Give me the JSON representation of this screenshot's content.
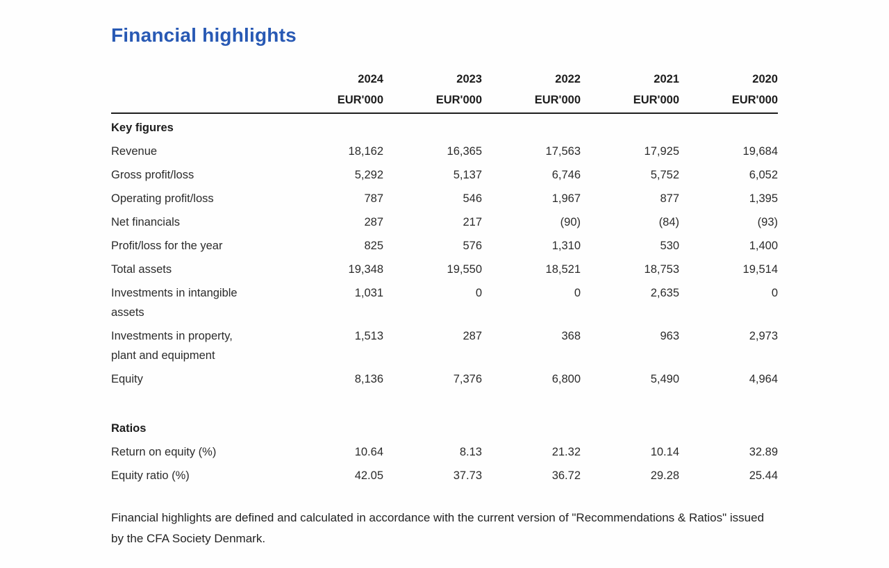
{
  "page": {
    "title": "Financial highlights",
    "title_color": "#2859b4",
    "footnote": "Financial highlights are defined and calculated in accordance with the current version of \"Recommendations & Ratios\" issued by the CFA Society Denmark."
  },
  "table": {
    "year_headers": [
      "2024",
      "2023",
      "2022",
      "2021",
      "2020"
    ],
    "unit_label": "EUR'000",
    "sections": [
      {
        "label": "Key figures",
        "rows": [
          {
            "label": "Revenue",
            "values": [
              "18,162",
              "16,365",
              "17,563",
              "17,925",
              "19,684"
            ]
          },
          {
            "label": "Gross profit/loss",
            "values": [
              "5,292",
              "5,137",
              "6,746",
              "5,752",
              "6,052"
            ]
          },
          {
            "label": "Operating profit/loss",
            "values": [
              "787",
              "546",
              "1,967",
              "877",
              "1,395"
            ]
          },
          {
            "label": "Net financials",
            "values": [
              "287",
              "217",
              "(90)",
              "(84)",
              "(93)"
            ]
          },
          {
            "label": "Profit/loss for the year",
            "values": [
              "825",
              "576",
              "1,310",
              "530",
              "1,400"
            ]
          },
          {
            "label": "Total assets",
            "values": [
              "19,348",
              "19,550",
              "18,521",
              "18,753",
              "19,514"
            ]
          },
          {
            "label": "Investments in intangible\nassets",
            "values": [
              "1,031",
              "0",
              "0",
              "2,635",
              "0"
            ]
          },
          {
            "label": "Investments in property,\nplant and equipment",
            "values": [
              "1,513",
              "287",
              "368",
              "963",
              "2,973"
            ]
          },
          {
            "label": "Equity",
            "values": [
              "8,136",
              "7,376",
              "6,800",
              "5,490",
              "4,964"
            ]
          }
        ]
      },
      {
        "label": "Ratios",
        "rows": [
          {
            "label": "Return on equity (%)",
            "values": [
              "10.64",
              "8.13",
              "21.32",
              "10.14",
              "32.89"
            ]
          },
          {
            "label": "Equity ratio (%)",
            "values": [
              "42.05",
              "37.73",
              "36.72",
              "29.28",
              "25.44"
            ]
          }
        ]
      }
    ]
  }
}
